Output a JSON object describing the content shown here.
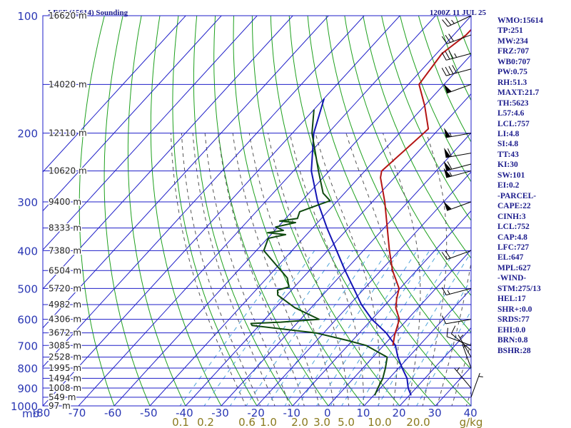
{
  "header": {
    "station": "LBSF (15614) Sounding",
    "time": "1200Z 11 JUL 25"
  },
  "indices": [
    "WMO:15614",
    "TP:251",
    "MW:234",
    "FRZ:707",
    "WB0:707",
    "PW:0.75",
    "RH:51.3",
    "MAXT:21.7",
    "TH:5623",
    "L57:4.6",
    "LCL:757",
    "LI:4.8",
    "SI:4.8",
    "TT:43",
    "KI:30",
    "SW:101",
    "EI:0.2",
    "-PARCEL-",
    "CAPE:22",
    "CINH:3",
    "LCL:752",
    "CAP:4.8",
    "LFC:727",
    "EL:647",
    "MPL:627",
    "-WIND-",
    "STM:275/13",
    "HEL:17",
    "SHR+:0.0",
    "SRDS:77",
    "EHI:0.0",
    "BRN:0.8",
    "BSHR:28"
  ],
  "colors": {
    "isobar": "#1e1ec8",
    "isotherm": "#1e1ec8",
    "dry_adiabat": "#1ea01e",
    "moist_adiabat": "#555555",
    "mixing_ratio": "#4da3d9",
    "temperature": "#b41414",
    "dewpoint": "#0f4a0f",
    "parcel": "#1414b4",
    "text": "#1c1c8c"
  },
  "chart_data": {
    "type": "skew-t",
    "pressure_axis_label": "mb",
    "pressure_ticks": [
      "100",
      "200",
      "300",
      "400",
      "500",
      "600",
      "700",
      "800",
      "900",
      "1000"
    ],
    "pressure_levels": [
      100,
      150,
      200,
      250,
      300,
      350,
      400,
      450,
      500,
      550,
      600,
      650,
      700,
      750,
      800,
      850,
      900,
      950,
      1000
    ],
    "height_labels": [
      {
        "p": 100,
        "label": "16620 m"
      },
      {
        "p": 150,
        "label": "14020 m"
      },
      {
        "p": 200,
        "label": "12110 m"
      },
      {
        "p": 250,
        "label": "10620 m"
      },
      {
        "p": 300,
        "label": "9400 m"
      },
      {
        "p": 350,
        "label": "8333 m"
      },
      {
        "p": 400,
        "label": "7380 m"
      },
      {
        "p": 450,
        "label": "6504 m"
      },
      {
        "p": 500,
        "label": "5720 m"
      },
      {
        "p": 550,
        "label": "4982 m"
      },
      {
        "p": 600,
        "label": "4306 m"
      },
      {
        "p": 650,
        "label": "3672 m"
      },
      {
        "p": 700,
        "label": "3085 m"
      },
      {
        "p": 750,
        "label": "2528 m"
      },
      {
        "p": 800,
        "label": "1995 m"
      },
      {
        "p": 850,
        "label": "1494 m"
      },
      {
        "p": 900,
        "label": "1008 m"
      },
      {
        "p": 950,
        "label": "549 m"
      },
      {
        "p": 1000,
        "label": "97 m"
      }
    ],
    "temperature_ticks": [
      "-80",
      "-70",
      "-60",
      "-50",
      "-40",
      "-30",
      "-20",
      "-10",
      "0",
      "10",
      "20",
      "30",
      "40"
    ],
    "mixing_ratio_ticks": [
      "0.1",
      "0.2",
      "0.6",
      "1.0",
      "2.0",
      "3.0",
      "5.0",
      "10.0",
      "20.0"
    ],
    "mixing_ratio_unit": "g/kg",
    "temperature_profile": [
      [
        100,
        -56.3
      ],
      [
        112,
        -56.5
      ],
      [
        125,
        -58.5
      ],
      [
        150,
        -57.0
      ],
      [
        170,
        -50.0
      ],
      [
        195,
        -43.0
      ],
      [
        200,
        -43.2
      ],
      [
        250,
        -45.3
      ],
      [
        260,
        -43.9
      ],
      [
        300,
        -36.5
      ],
      [
        350,
        -29.1
      ],
      [
        400,
        -22.7
      ],
      [
        450,
        -16.7
      ],
      [
        500,
        -10.3
      ],
      [
        530,
        -8.4
      ],
      [
        560,
        -6.3
      ],
      [
        600,
        -2.3
      ],
      [
        660,
        0.5
      ],
      [
        700,
        2.6
      ]
    ],
    "dewpoint_profile": [
      [
        174,
        -80.0
      ],
      [
        200,
        -74.5
      ],
      [
        250,
        -63.0
      ],
      [
        285,
        -56.0
      ],
      [
        298,
        -52.1
      ],
      [
        304,
        -53.9
      ],
      [
        318,
        -57.8
      ],
      [
        331,
        -56.7
      ],
      [
        336,
        -61.0
      ],
      [
        339,
        -56.2
      ],
      [
        348,
        -60.6
      ],
      [
        355,
        -57.6
      ],
      [
        360,
        -61.4
      ],
      [
        364,
        -55.9
      ],
      [
        372,
        -59.8
      ],
      [
        400,
        -57.9
      ],
      [
        470,
        -44.3
      ],
      [
        496,
        -41.5
      ],
      [
        505,
        -43.9
      ],
      [
        520,
        -42.6
      ],
      [
        560,
        -34.6
      ],
      [
        600,
        -24.8
      ],
      [
        610,
        -34.8
      ],
      [
        615,
        -42.8
      ],
      [
        622,
        -42.0
      ],
      [
        650,
        -22.2
      ],
      [
        680,
        -11.3
      ],
      [
        700,
        -4.9
      ],
      [
        750,
        4.0
      ],
      [
        800,
        6.3
      ],
      [
        850,
        8.2
      ],
      [
        900,
        9.3
      ],
      [
        940,
        10.3
      ]
    ],
    "parcel_profile": [
      [
        163,
        -80.0
      ],
      [
        200,
        -74.0
      ],
      [
        250,
        -65.0
      ],
      [
        300,
        -55.3
      ],
      [
        350,
        -46.0
      ],
      [
        400,
        -37.5
      ],
      [
        450,
        -30.0
      ],
      [
        500,
        -23.0
      ],
      [
        550,
        -16.7
      ],
      [
        600,
        -10.0
      ],
      [
        650,
        -2.5
      ],
      [
        700,
        3.3
      ],
      [
        750,
        7.0
      ],
      [
        800,
        11.0
      ],
      [
        850,
        15.0
      ],
      [
        900,
        17.8
      ],
      [
        940,
        20.5
      ]
    ],
    "wind_barbs": [
      {
        "p": 100,
        "dir": 245,
        "kt": 25
      },
      {
        "p": 112,
        "dir": 250,
        "kt": 30
      },
      {
        "p": 125,
        "dir": 255,
        "kt": 35
      },
      {
        "p": 137,
        "dir": 255,
        "kt": 40
      },
      {
        "p": 150,
        "dir": 250,
        "kt": 50
      },
      {
        "p": 200,
        "dir": 260,
        "kt": 55
      },
      {
        "p": 225,
        "dir": 260,
        "kt": 60
      },
      {
        "p": 240,
        "dir": 255,
        "kt": 60
      },
      {
        "p": 250,
        "dir": 255,
        "kt": 55
      },
      {
        "p": 300,
        "dir": 250,
        "kt": 50
      },
      {
        "p": 400,
        "dir": 250,
        "kt": 20
      },
      {
        "p": 500,
        "dir": 255,
        "kt": 15
      },
      {
        "p": 600,
        "dir": 260,
        "kt": 10
      },
      {
        "p": 700,
        "dir": 290,
        "kt": 10
      },
      {
        "p": 720,
        "dir": 310,
        "kt": 10
      },
      {
        "p": 750,
        "dir": 330,
        "kt": 8
      },
      {
        "p": 800,
        "dir": 340,
        "kt": 5
      },
      {
        "p": 900,
        "dir": 320,
        "kt": 5
      },
      {
        "p": 950,
        "dir": 20,
        "kt": 5
      }
    ]
  }
}
